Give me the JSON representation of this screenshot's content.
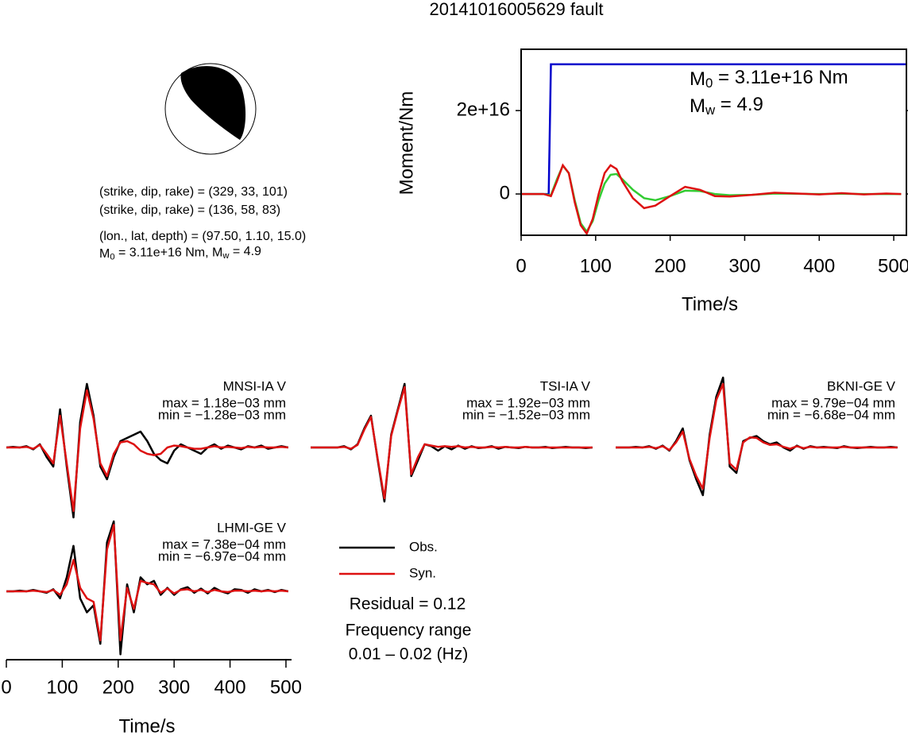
{
  "title": "20141016005629 fault",
  "source_info": {
    "lines": [
      "(strike, dip, rake) = (329, 33, 101)",
      "(strike, dip, rake) = (136, 58, 83)",
      "(lon., lat, depth) = (97.50, 1.10, 15.0)"
    ],
    "moment_line": [
      "M",
      "0",
      " = 3.11e+16 Nm, M",
      "w",
      " = 4.9"
    ]
  },
  "chart_data": [
    {
      "type": "line",
      "ylabel": "Moment/Nm",
      "xlabel": "Time/s",
      "annotations": [
        [
          "M",
          "0",
          " = 3.11e+16 Nm"
        ],
        [
          "M",
          "w",
          " = 4.9"
        ]
      ],
      "xlim": [
        0,
        517
      ],
      "ylim": [
        -9900000000000000.0,
        3.47e+16
      ],
      "xticks": [
        0,
        100,
        200,
        300,
        400,
        500
      ],
      "yticks": [
        0,
        {
          "value": 2e+16,
          "label": "2e+16"
        }
      ],
      "series": [
        {
          "color": "#0000cc",
          "x": [
            0,
            37,
            40,
            517
          ],
          "values": [
            0,
            0,
            3.11e+16,
            3.11e+16
          ]
        },
        {
          "color": "#33cc33",
          "x": [
            0,
            30,
            40,
            48,
            56,
            64,
            72,
            80,
            88,
            96,
            104,
            112,
            120,
            128,
            136,
            150,
            165,
            180,
            200,
            220,
            240,
            260,
            280,
            310,
            340,
            370,
            400,
            430,
            460,
            490,
            510
          ],
          "values": [
            0,
            0,
            -300000000000000.0,
            3500000000000000.0,
            6800000000000000.0,
            5000000000000000.0,
            -1500000000000000.0,
            -7000000000000000.0,
            -9000000000000000.0,
            -6500000000000000.0,
            -1500000000000000.0,
            2500000000000000.0,
            4600000000000000.0,
            4800000000000000.0,
            3500000000000000.0,
            1000000000000000.0,
            -1000000000000000.0,
            -1500000000000000.0,
            -500000000000000.0,
            800000000000000.0,
            700000000000000.0,
            0,
            -300000000000000.0,
            -200000000000000.0,
            100000000000000.0,
            50000000000000.0,
            0,
            50000000000000.0,
            0,
            0,
            0
          ]
        },
        {
          "color": "#dd1111",
          "x": [
            0,
            30,
            40,
            48,
            56,
            64,
            72,
            80,
            88,
            96,
            104,
            112,
            120,
            128,
            136,
            150,
            165,
            180,
            200,
            220,
            240,
            260,
            280,
            310,
            340,
            370,
            400,
            430,
            460,
            490,
            510
          ],
          "values": [
            0,
            0,
            -500000000000000.0,
            3000000000000000.0,
            6900000000000000.0,
            5000000000000000.0,
            -2000000000000000.0,
            -7500000000000000.0,
            -9500000000000000.0,
            -6000000000000000.0,
            0,
            5000000000000000.0,
            6900000000000000.0,
            6000000000000000.0,
            3000000000000000.0,
            -1000000000000000.0,
            -3400000000000000.0,
            -2800000000000000.0,
            -500000000000000.0,
            1700000000000000.0,
            1000000000000000.0,
            -500000000000000.0,
            -600000000000000.0,
            -200000000000000.0,
            300000000000000.0,
            100000000000000.0,
            -100000000000000.0,
            200000000000000.0,
            -100000000000000.0,
            100000000000000.0,
            0
          ]
        }
      ]
    },
    {
      "type": "waveforms",
      "xlabel": "Time/s",
      "xlim": [
        0,
        510
      ],
      "xticks": [
        0,
        100,
        200,
        300,
        400,
        500
      ],
      "x": [
        0,
        12,
        24,
        36,
        48,
        60,
        72,
        84,
        96,
        108,
        120,
        132,
        144,
        156,
        168,
        180,
        192,
        204,
        216,
        228,
        240,
        252,
        264,
        276,
        288,
        300,
        312,
        324,
        336,
        348,
        360,
        372,
        384,
        396,
        408,
        420,
        432,
        444,
        456,
        468,
        480,
        492,
        504
      ],
      "series": [
        {
          "name": "Obs.",
          "color": "#000000"
        },
        {
          "name": "Syn.",
          "color": "#dd1111"
        }
      ],
      "residual": "Residual = 0.12",
      "frequency": [
        "Frequency range",
        "0.01 – 0.02 (Hz)"
      ],
      "panels": [
        {
          "station": "MNSI-IA V",
          "max": "max = 1.18e−03 mm",
          "min": "min = −1.28e−03 mm",
          "obs": [
            0,
            0.01,
            0,
            0.02,
            -0.03,
            0.05,
            -0.15,
            -0.3,
            0.6,
            -0.3,
            -1.1,
            0.4,
            1.0,
            0.5,
            -0.3,
            -0.5,
            -0.15,
            0.1,
            0.15,
            0.2,
            0.25,
            0.1,
            -0.1,
            -0.2,
            -0.25,
            -0.05,
            0.05,
            0,
            -0.05,
            -0.1,
            0,
            0.05,
            -0.02,
            0.03,
            0,
            -0.03,
            0.02,
            0,
            0.03,
            -0.02,
            0,
            0.02,
            0
          ],
          "syn": [
            0,
            0,
            0,
            0.01,
            -0.02,
            0.04,
            -0.1,
            -0.25,
            0.5,
            -0.25,
            -1.0,
            0.3,
            0.9,
            0.45,
            -0.25,
            -0.45,
            -0.1,
            0.08,
            0.1,
            0.05,
            -0.05,
            -0.1,
            -0.12,
            -0.1,
            0,
            0.03,
            0.02,
            0,
            -0.02,
            -0.02,
            0,
            0.02,
            0,
            0.01,
            0,
            -0.01,
            0.01,
            0,
            0.01,
            0,
            0,
            0.01,
            0
          ]
        },
        {
          "station": "TSI-IA V",
          "max": "max = 1.92e−03 mm",
          "min": "min = −1.52e−03 mm",
          "obs": [
            0,
            0,
            0,
            0,
            0,
            0.02,
            -0.03,
            0.05,
            0.3,
            0.5,
            -0.2,
            -0.85,
            0.2,
            0.6,
            1.0,
            -0.45,
            -0.2,
            0.05,
            0.02,
            -0.05,
            0.02,
            -0.03,
            0.03,
            -0.02,
            0.02,
            -0.01,
            0,
            0.02,
            -0.02,
            0.01,
            0,
            -0.01,
            0.01,
            0,
            0,
            0.01,
            -0.01,
            0,
            0.01,
            0,
            0,
            -0.01,
            0
          ],
          "syn": [
            0,
            0,
            0,
            0,
            0,
            0.01,
            -0.02,
            0.04,
            0.28,
            0.48,
            -0.18,
            -0.8,
            0.18,
            0.58,
            0.95,
            -0.42,
            -0.15,
            0.05,
            0.03,
            0.01,
            0.02,
            0.01,
            0.02,
            0,
            0.01,
            0,
            0,
            0.01,
            0,
            0.01,
            0,
            0,
            0.01,
            0,
            0,
            0,
            0,
            0,
            0,
            0,
            0,
            0,
            0
          ]
        },
        {
          "station": "BKNI-GE V",
          "max": "max = 9.79e−04 mm",
          "min": "min = −6.68e−04 mm",
          "obs": [
            0,
            0,
            0,
            0.01,
            0,
            0.02,
            -0.02,
            0.03,
            -0.05,
            0.1,
            0.3,
            -0.2,
            -0.5,
            -0.75,
            0.2,
            0.8,
            1.1,
            -0.3,
            -0.4,
            0.1,
            0.15,
            0.18,
            0.1,
            0.05,
            0.08,
            0,
            -0.05,
            0.03,
            -0.02,
            0.02,
            0,
            0.01,
            0,
            -0.01,
            0.02,
            0,
            -0.01,
            0,
            0.01,
            0,
            0,
            0.01,
            0
          ],
          "syn": [
            0,
            0,
            0,
            0,
            0,
            0.01,
            -0.01,
            0.02,
            -0.04,
            0.08,
            0.25,
            -0.18,
            -0.45,
            -0.65,
            0.15,
            0.75,
            1.0,
            -0.25,
            -0.35,
            0.08,
            0.16,
            0.15,
            0.08,
            0.04,
            0.05,
            0.01,
            -0.02,
            0.02,
            -0.01,
            0.01,
            0,
            0,
            0,
            0,
            0.01,
            0,
            0,
            0,
            0,
            0,
            0,
            0,
            0
          ]
        },
        {
          "station": "LHMI-GE V",
          "max": "max = 7.38e−04 mm",
          "min": "min = −6.97e−04 mm",
          "obs": [
            0,
            0,
            0.01,
            0,
            0.02,
            0,
            -0.02,
            0.03,
            -0.1,
            0.2,
            0.65,
            -0.1,
            -0.3,
            -0.2,
            -0.75,
            0.7,
            1.0,
            -0.9,
            0.1,
            -0.3,
            0.2,
            0.1,
            0.15,
            -0.05,
            0.05,
            -0.05,
            0.03,
            0.06,
            -0.02,
            0.04,
            -0.03,
            0.05,
            0,
            -0.03,
            0.03,
            0.02,
            -0.02,
            0.03,
            0,
            0.02,
            -0.01,
            0.02,
            0
          ],
          "syn": [
            0,
            0,
            0,
            0,
            0.01,
            0,
            -0.01,
            0.02,
            -0.05,
            0.1,
            0.45,
            0.05,
            -0.1,
            -0.15,
            -0.7,
            0.6,
            0.95,
            -0.7,
            0.05,
            -0.25,
            0.15,
            0.12,
            0.1,
            -0.02,
            0.04,
            -0.03,
            0.02,
            0.03,
            0,
            0.02,
            -0.01,
            0.02,
            0,
            -0.01,
            0.01,
            0.01,
            0,
            0.01,
            0,
            0.01,
            0,
            0.01,
            0
          ]
        }
      ]
    }
  ]
}
